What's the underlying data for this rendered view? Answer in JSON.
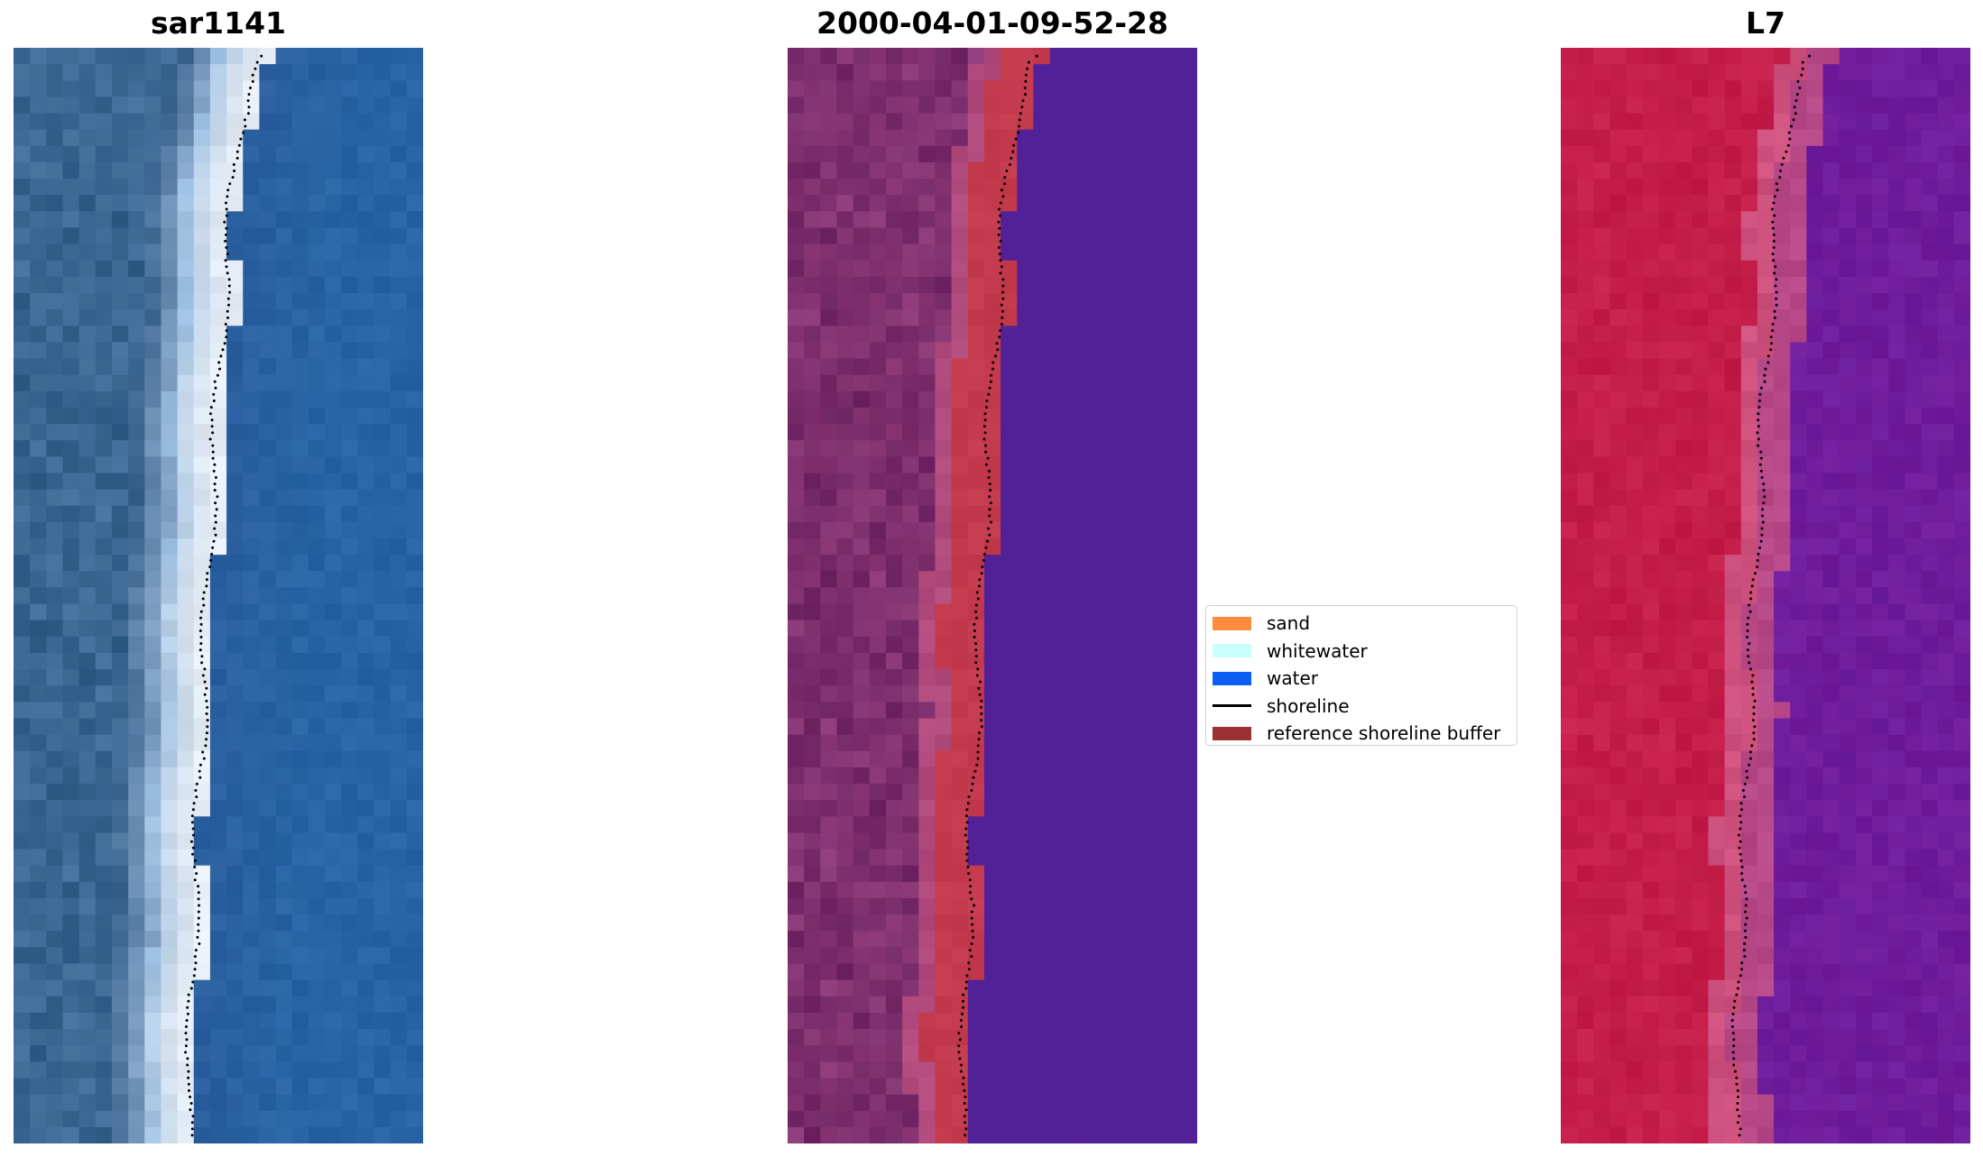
{
  "figure": {
    "panels": [
      {
        "title": "sar1141",
        "kind": "rgb-image"
      },
      {
        "title": "2000-04-01-09-52-28",
        "kind": "classified-image"
      },
      {
        "title": "L7",
        "kind": "mndwi-image"
      }
    ]
  },
  "legend": {
    "placement": "center",
    "items": [
      {
        "label": "sand",
        "kind": "patch",
        "color": "#ff8c3c"
      },
      {
        "label": "whitewater",
        "kind": "patch",
        "color": "#c8ffff"
      },
      {
        "label": "water",
        "kind": "patch",
        "color": "#0a5ef2"
      },
      {
        "label": "shoreline",
        "kind": "line",
        "color": "#000000"
      },
      {
        "label": "reference shoreline buffer",
        "kind": "patch",
        "color": "#9b3035"
      }
    ]
  },
  "colors": {
    "rgb_water": "#2a5f9f",
    "rgb_surf": "#e9eff7",
    "classified_land": "#6e2362",
    "classified_buffer": "#c23a4c",
    "classified_water": "#532197",
    "index_land": "#c31a48",
    "index_water": "#701c9a",
    "shoreline_dots": "#000000"
  }
}
